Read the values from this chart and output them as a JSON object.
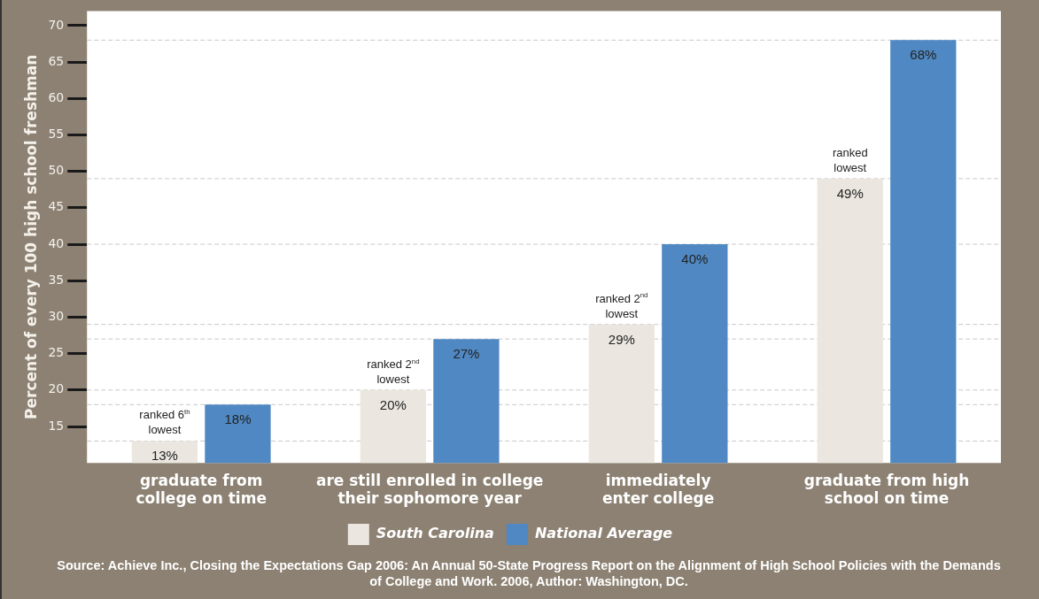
{
  "chart_data": {
    "type": "bar",
    "ylabel": "Percent of every 100 high school freshman",
    "categories": [
      "graduate from college on time",
      "are still enrolled in college their sophomore year",
      "immediately enter college",
      "graduate from high school on time"
    ],
    "series": [
      {
        "name": "South Carolina",
        "color": "#ebe7e0",
        "values": [
          13,
          20,
          29,
          49
        ],
        "value_labels": [
          "13%",
          "20%",
          "29%",
          "49%"
        ]
      },
      {
        "name": "National Average",
        "color": "#4f88c2",
        "values": [
          18,
          27,
          40,
          68
        ],
        "value_labels": [
          "18%",
          "27%",
          "40%",
          "68%"
        ]
      }
    ],
    "ylim": [
      10,
      72
    ],
    "yticks": [
      15,
      20,
      25,
      30,
      35,
      40,
      45,
      50,
      55,
      60,
      65,
      70
    ],
    "grid": false,
    "legend": "bottom",
    "ref_lines": [
      {
        "axis": "y",
        "value": 68,
        "color": "#c8c8c8",
        "line_style": "dashed"
      },
      {
        "axis": "y",
        "value": 49,
        "color": "#c8c8c8",
        "line_style": "dashed"
      },
      {
        "axis": "y",
        "value": 40,
        "color": "#c8c8c8",
        "line_style": "dashed"
      },
      {
        "axis": "y",
        "value": 29,
        "color": "#c8c8c8",
        "line_style": "dashed"
      },
      {
        "axis": "y",
        "value": 27,
        "color": "#c8c8c8",
        "line_style": "dashed"
      },
      {
        "axis": "y",
        "value": 20,
        "color": "#c8c8c8",
        "line_style": "dashed"
      },
      {
        "axis": "y",
        "value": 18,
        "color": "#c8c8c8",
        "line_style": "dashed"
      },
      {
        "axis": "y",
        "value": 13,
        "color": "#c8c8c8",
        "line_style": "dashed"
      }
    ],
    "annotations": [
      {
        "text": "ranked 6$^{th}$ lowest",
        "x": "graduate from college on time",
        "y": 13
      },
      {
        "text": "ranked 2$^{nd}$ lowest",
        "x": "are still enrolled in college their sophomore year",
        "y": 20
      },
      {
        "text": "ranked 2$^{nd}$ lowest",
        "x": "immediately enter college",
        "y": 29
      },
      {
        "text": "ranked lowest",
        "x": "graduate from high school on time",
        "y": 49
      },
      "Source: Achieve Inc., Closing the Expectations Gap 2006: An Annual 50-State Progress Report on the Alignment of High School Policies with the Demands of College and Work. 2006, Author: Washington, DC."
    ]
  }
}
